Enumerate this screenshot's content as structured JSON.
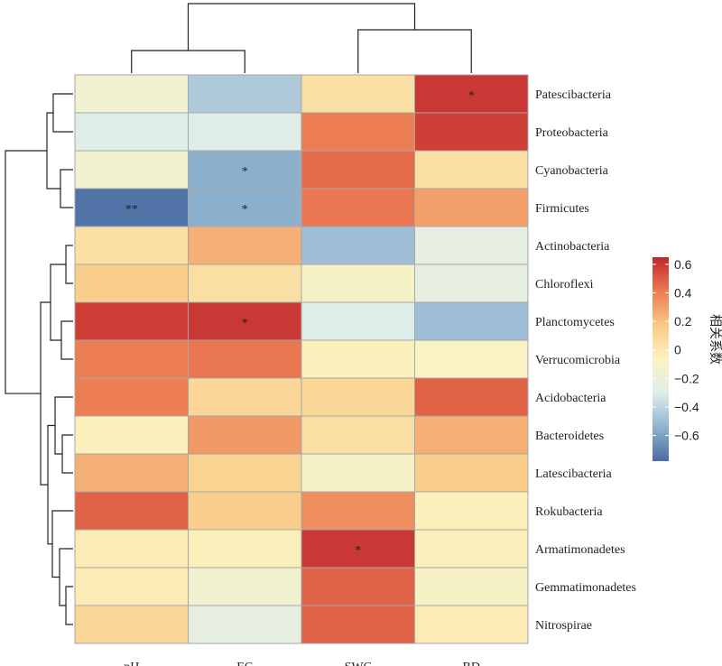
{
  "chart_data": {
    "type": "heatmap",
    "columns": [
      "pH",
      "EC",
      "SWC",
      "BD"
    ],
    "rows": [
      "Patescibacteria",
      "Proteobacteria",
      "Cyanobacteria",
      "Firmicutes",
      "Actinobacteria",
      "Chloroflexi",
      "Planctomycetes",
      "Verrucomicrobia",
      "Acidobacteria",
      "Bacteroidetes",
      "Latescibacteria",
      "Rokubacteria",
      "Armatimonadetes",
      "Gemmatimonadetes",
      "Nitrospirae"
    ],
    "values": [
      [
        -0.15,
        -0.45,
        0.05,
        0.6
      ],
      [
        -0.3,
        -0.3,
        0.4,
        0.58
      ],
      [
        -0.15,
        -0.55,
        0.45,
        0.05
      ],
      [
        -0.75,
        -0.55,
        0.42,
        0.3
      ],
      [
        0.05,
        0.25,
        -0.5,
        -0.25
      ],
      [
        0.15,
        0.05,
        -0.1,
        -0.25
      ],
      [
        0.58,
        0.6,
        -0.3,
        -0.5
      ],
      [
        0.4,
        0.42,
        -0.05,
        -0.08
      ],
      [
        0.4,
        0.1,
        0.1,
        0.48
      ],
      [
        -0.05,
        0.32,
        0.05,
        0.25
      ],
      [
        0.25,
        0.12,
        -0.1,
        0.15
      ],
      [
        0.48,
        0.15,
        0.35,
        -0.05
      ],
      [
        -0.02,
        -0.05,
        0.6,
        -0.05
      ],
      [
        -0.02,
        -0.15,
        0.48,
        -0.1
      ],
      [
        0.1,
        -0.25,
        0.48,
        -0.02
      ]
    ],
    "significance": [
      [
        "",
        "",
        "",
        "*"
      ],
      [
        "",
        "",
        "",
        ""
      ],
      [
        "",
        "*",
        "",
        ""
      ],
      [
        "**",
        "*",
        "",
        ""
      ],
      [
        "",
        "",
        "",
        ""
      ],
      [
        "",
        "",
        "",
        ""
      ],
      [
        "",
        "*",
        "",
        ""
      ],
      [
        "",
        "",
        "",
        ""
      ],
      [
        "",
        "",
        "",
        ""
      ],
      [
        "",
        "",
        "",
        ""
      ],
      [
        "",
        "",
        "",
        ""
      ],
      [
        "",
        "",
        "",
        ""
      ],
      [
        "",
        "",
        "*",
        ""
      ],
      [
        "",
        "",
        "",
        ""
      ],
      [
        "",
        "",
        "",
        ""
      ]
    ],
    "colorbar": {
      "title": "相关系数",
      "ticks": [
        "0.6",
        "0.4",
        "0.2",
        "0",
        "−0.2",
        "−0.4",
        "−0.6"
      ],
      "tick_values": [
        0.6,
        0.4,
        0.2,
        0,
        -0.2,
        -0.4,
        -0.6
      ],
      "range": [
        -0.78,
        0.65
      ],
      "colors": [
        "#4a6ba3",
        "#8fb4cf",
        "#dfedea",
        "#fbf3c0",
        "#f9ca85",
        "#ec7a52",
        "#c1272d"
      ]
    },
    "grid_line_color": "#a6a6a6"
  }
}
